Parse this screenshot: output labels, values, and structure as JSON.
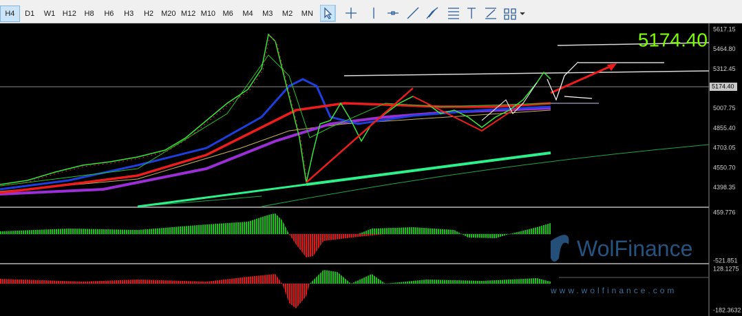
{
  "toolbar": {
    "timeframes": [
      "H4",
      "D1",
      "W1",
      "H12",
      "H8",
      "H6",
      "H3",
      "H2",
      "M20",
      "M12",
      "M10",
      "M6",
      "M4",
      "M3",
      "M2",
      "MN"
    ],
    "active": "H4"
  },
  "price_axis": {
    "labels": [
      "5617.15",
      "5464.80",
      "5312.45",
      "5007.75",
      "4855.40",
      "4703.05",
      "4550.70",
      "4398.35"
    ]
  },
  "current_price": "5174.40",
  "indicator_1": {
    "axis_labels": [
      "459.776",
      "-521.851"
    ]
  },
  "indicator_2": {
    "axis_labels": [
      "128.1275",
      "-182.3632"
    ]
  },
  "watermark": {
    "brand": "WolFinance",
    "url": "www.wolfinance.com"
  }
}
